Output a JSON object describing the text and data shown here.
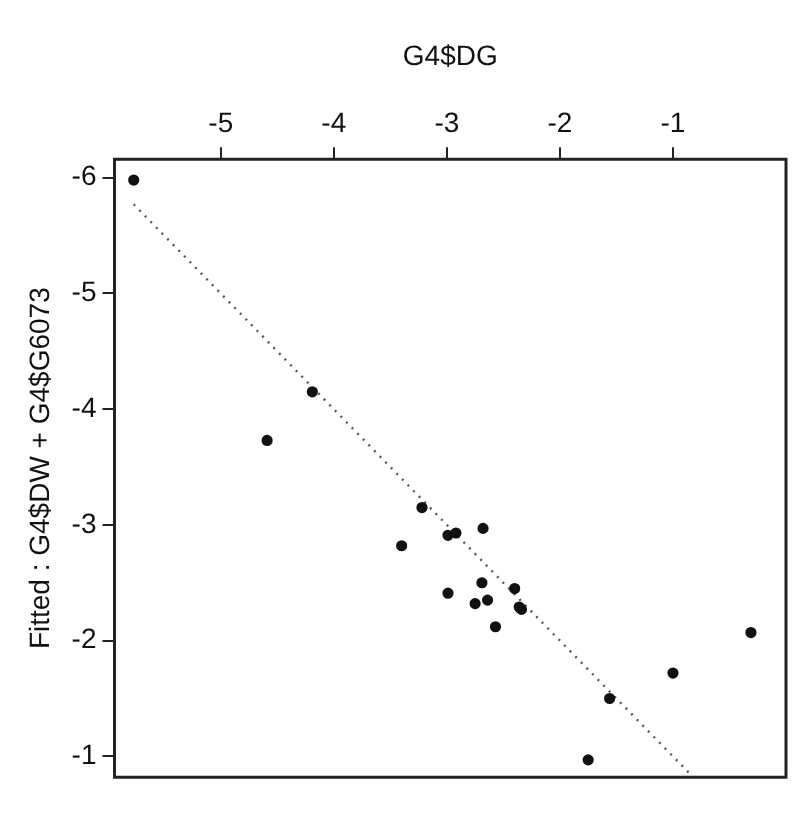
{
  "chart_data": {
    "type": "scatter",
    "xlabel": "G4$DG",
    "ylabel": "Fitted : G4$DW + G4$G6073",
    "xlim": [
      -5.94,
      0
    ],
    "xticks": [
      -5,
      -4,
      -3,
      -2,
      -1
    ],
    "ylim": [
      -0.82,
      -6.16
    ],
    "yticks": [
      -6,
      -5,
      -4,
      -3,
      -2,
      -1
    ],
    "grid": false,
    "legend": false,
    "marker": "circle",
    "series": [
      {
        "type": "scatter",
        "color": "#111111",
        "x": [
          -5.77,
          -4.19,
          -4.59,
          -3.22,
          -3.4,
          -2.99,
          -2.92,
          -2.68,
          -2.69,
          -2.4,
          -2.99,
          -2.75,
          -2.64,
          -2.36,
          -2.34,
          -2.57,
          -0.31,
          -1.0,
          -1.56,
          -1.75
        ],
        "values": [
          -5.98,
          -4.15,
          -3.73,
          -3.15,
          -2.82,
          -2.91,
          -2.93,
          -2.97,
          -2.5,
          -2.45,
          -2.41,
          -2.32,
          -2.35,
          -2.29,
          -2.27,
          -2.12,
          -2.07,
          -1.72,
          -1.5,
          -0.97
        ]
      },
      {
        "type": "line",
        "color": "#555555",
        "line_style": "dotted",
        "marker": "none",
        "x": [
          -5.77,
          -0.82
        ],
        "values": [
          -5.77,
          -0.82
        ]
      }
    ]
  }
}
